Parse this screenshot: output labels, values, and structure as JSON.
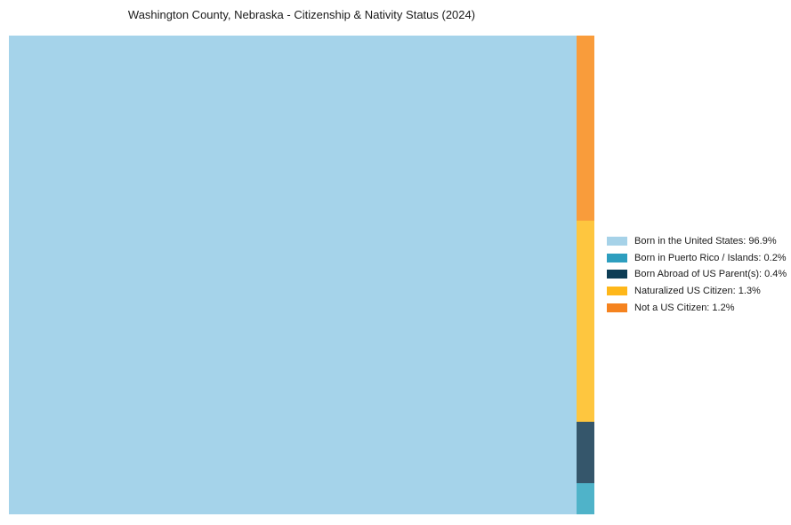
{
  "page": {
    "background": "#ffffff"
  },
  "chart_data": {
    "type": "treemap",
    "title": "Washington County, Nebraska - Citizenship & Nativity Status (2024)",
    "categories": [
      "Born in the United States",
      "Born in Puerto Rico / Islands",
      "Born Abroad of US Parent(s)",
      "Naturalized US Citizen",
      "Not a US Citizen"
    ],
    "values": [
      96.9,
      0.2,
      0.4,
      1.3,
      1.2
    ],
    "unit": "%",
    "cell_colors": [
      "#A5D3EA",
      "#4FB3C9",
      "#35566B",
      "#FEC63F",
      "#F99C3B"
    ],
    "legend_colors": [
      "#A6D2E8",
      "#2D9EBF",
      "#0D3D55",
      "#FEB71A",
      "#F5831F"
    ],
    "layout_hints": {
      "main_cell": "Born in the United States fills the left ~96.9% of the plot width at full height",
      "small_column_order_bottom_to_top": [
        "Born in Puerto Rico / Islands",
        "Born Abroad of US Parent(s)",
        "Naturalized US Citizen",
        "Not a US Citizen"
      ],
      "legend_position": "right-center",
      "grid": "off",
      "axes": "none"
    }
  },
  "legend": {
    "items": [
      {
        "label": "Born in the United States: 96.9%",
        "color": "#A6D2E8"
      },
      {
        "label": "Born in Puerto Rico / Islands: 0.2%",
        "color": "#2D9EBF"
      },
      {
        "label": "Born Abroad of US Parent(s): 0.4%",
        "color": "#0D3D55"
      },
      {
        "label": "Naturalized US Citizen: 1.3%",
        "color": "#FEB71A"
      },
      {
        "label": "Not a US Citizen: 1.2%",
        "color": "#F5831F"
      }
    ]
  }
}
